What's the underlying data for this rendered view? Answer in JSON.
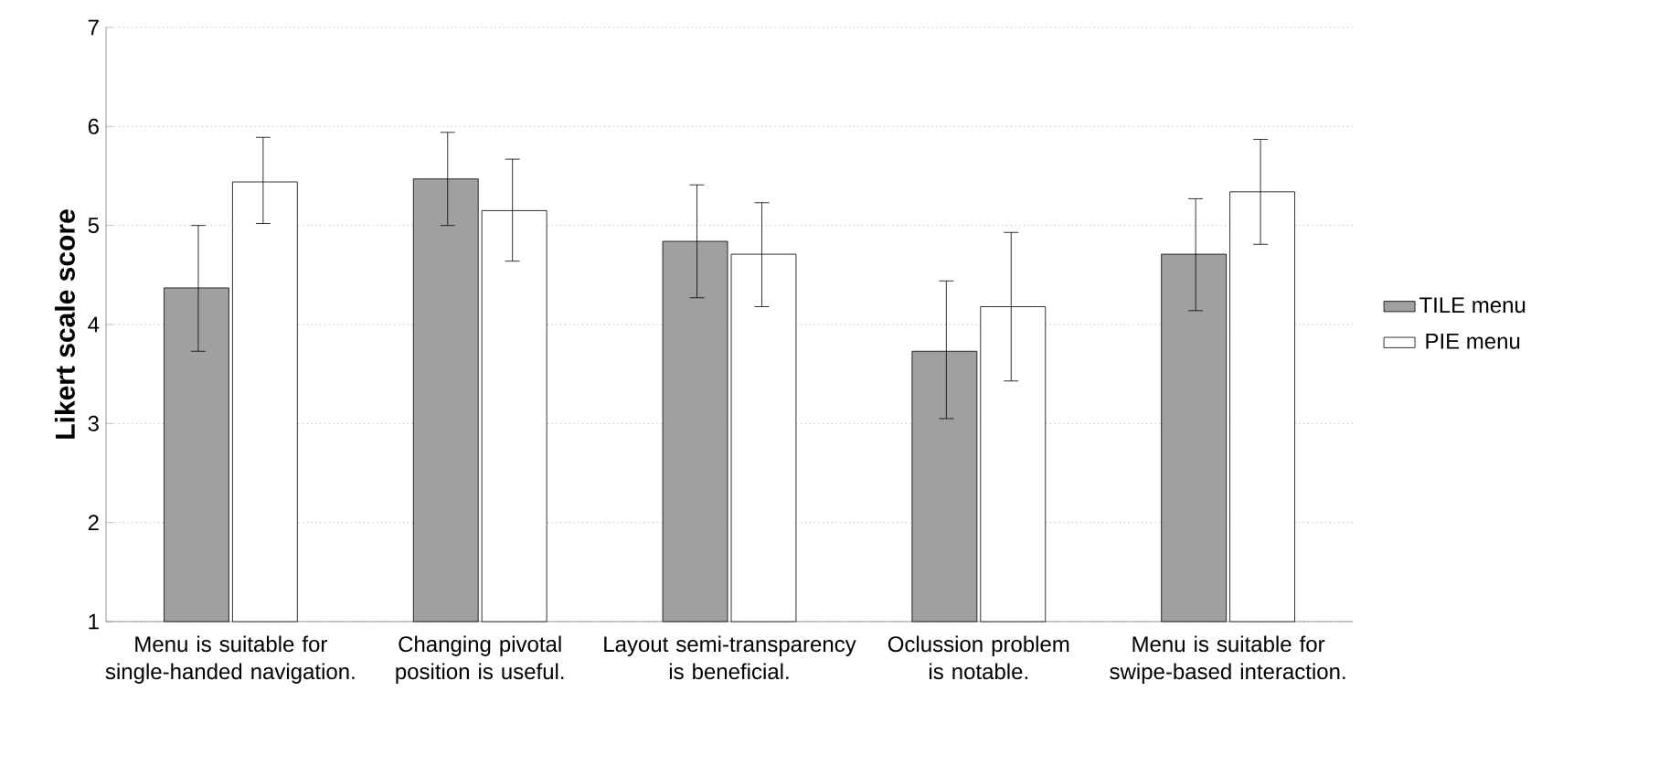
{
  "chart_data": {
    "type": "bar",
    "ylabel": "Likert scale score",
    "categories": [
      "Menu is suitable for single-handed navigation.",
      "Changing pivotal position is useful.",
      "Layout semi-transparency is beneficial.",
      "Oclussion problem is notable.",
      "Menu is suitable for swipe-based interaction."
    ],
    "series": [
      {
        "name": "TILE menu",
        "color": "#a0a0a0",
        "values": [
          4.37,
          5.47,
          4.84,
          3.73,
          4.71
        ],
        "errors": [
          [
            3.73,
            5.0
          ],
          [
            5.0,
            5.94
          ],
          [
            4.27,
            5.41
          ],
          [
            3.05,
            4.44
          ],
          [
            4.14,
            5.27
          ]
        ]
      },
      {
        "name": "PIE menu",
        "color": "#ffffff",
        "values": [
          5.44,
          5.15,
          4.71,
          4.18,
          5.34
        ],
        "errors": [
          [
            5.02,
            5.89
          ],
          [
            4.64,
            5.67
          ],
          [
            4.18,
            5.23
          ],
          [
            3.43,
            4.93
          ],
          [
            4.81,
            5.87
          ]
        ]
      }
    ],
    "ylim": [
      1,
      7
    ],
    "yticks": [
      1,
      2,
      3,
      4,
      5,
      6,
      7
    ],
    "grid": "y",
    "legend": "right"
  }
}
